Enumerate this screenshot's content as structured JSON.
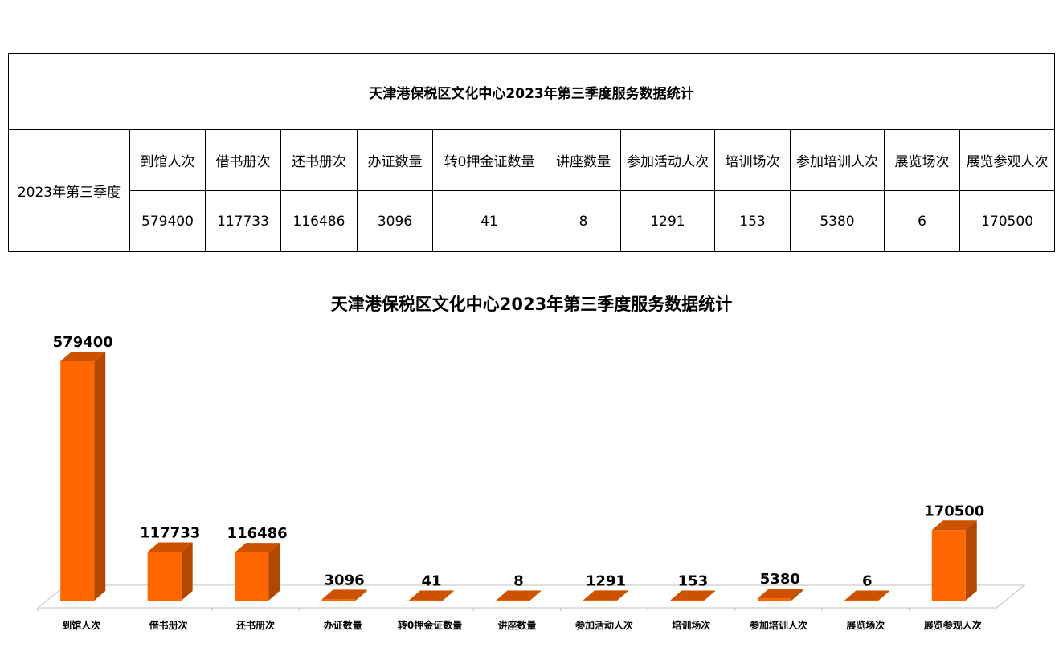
{
  "table": {
    "title": "天津港保税区文化中心2023年第三季度服务数据统计",
    "row_label": "2023年第三季度",
    "headers": [
      "到馆人次",
      "借书册次",
      "还书册次",
      "办证数量",
      "转0押金证数量",
      "讲座数量",
      "参加活动人次",
      "培训场次",
      "参加培训人次",
      "展览场次",
      "展览参观人次"
    ],
    "values": [
      "579400",
      "117733",
      "116486",
      "3096",
      "41",
      "8",
      "1291",
      "153",
      "5380",
      "6",
      "170500"
    ]
  },
  "chart_data": {
    "type": "bar",
    "title": "天津港保税区文化中心2023年第三季度服务数据统计",
    "categories": [
      "到馆人次",
      "借书册次",
      "还书册次",
      "办证数量",
      "转0押金证数量",
      "讲座数量",
      "参加活动人次",
      "培训场次",
      "参加培训人次",
      "展览场次",
      "展览参观人次"
    ],
    "values": [
      579400,
      117733,
      116486,
      3096,
      41,
      8,
      1291,
      153,
      5380,
      6,
      170500
    ],
    "data_labels": true,
    "three_d": true,
    "bar_color": "#FF6600",
    "bar_side_color": "#B34700",
    "bar_top_color": "#CC5200",
    "grid": false,
    "legend": "none"
  }
}
